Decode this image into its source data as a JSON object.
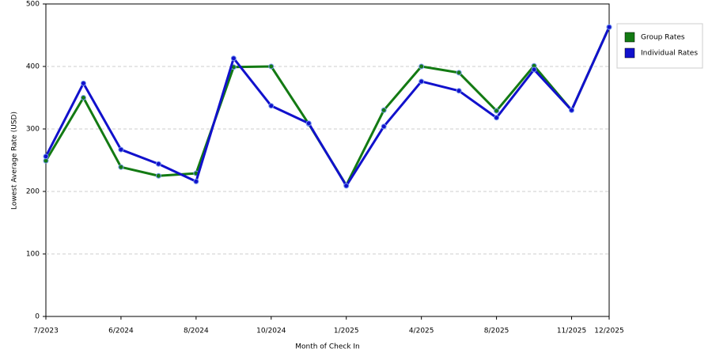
{
  "chart_data": {
    "type": "line",
    "x_label": "Month of Check In",
    "y_label": "Lowest Average Rate (USD)",
    "categories": [
      "7/2023",
      null,
      "6/2024",
      null,
      "8/2024",
      null,
      "10/2024",
      null,
      "1/2025",
      null,
      "4/2025",
      null,
      "8/2025",
      null,
      "11/2025",
      "12/2025"
    ],
    "series": [
      {
        "name": "Group Rates",
        "color": "#137a13",
        "values": [
          249,
          350,
          239,
          225,
          229,
          399,
          400,
          308,
          210,
          330,
          400,
          390,
          329,
          401,
          330,
          463
        ]
      },
      {
        "name": "Individual Rates",
        "color": "#1111cc",
        "values": [
          256,
          373,
          267,
          244,
          216,
          413,
          337,
          309,
          209,
          304,
          376,
          361,
          318,
          395,
          330,
          463
        ]
      }
    ],
    "ylim": [
      0,
      500
    ],
    "yticks": [
      0,
      100,
      200,
      300,
      400,
      500
    ],
    "grid": true,
    "legend": "right"
  }
}
